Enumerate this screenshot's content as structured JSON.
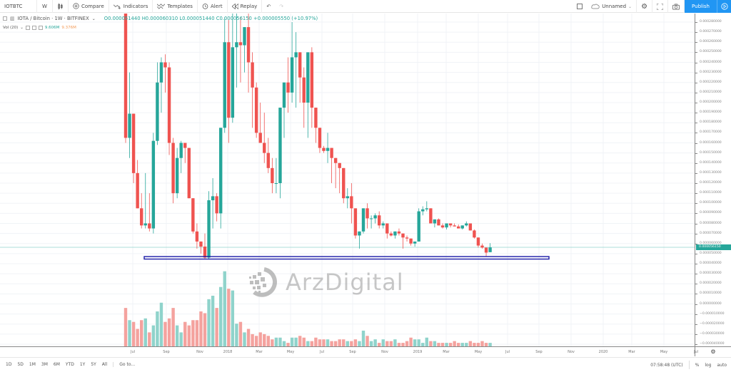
{
  "toolbar": {
    "symbol": "IOTBTC",
    "interval": "W",
    "compare_label": "Compare",
    "indicators_label": "Indicators",
    "templates_label": "Templates",
    "alert_label": "Alert",
    "replay_label": "Replay",
    "layout_name": "Unnamed",
    "publish_label": "Publish"
  },
  "legend": {
    "title": "IOTA / Bitcoin · 1W · BITFINEX",
    "ohlc": "O0.000051440  H0.000060310  L0.000051440  C0.000056150  +0.000005550 (+10.97%)",
    "vol_label": "Vol (20)",
    "vol_value_1": "9.606M",
    "vol_value_2": "9.376M"
  },
  "colors": {
    "up": "#26a69a",
    "down": "#ef5350",
    "vol_up": "#8fd3cb",
    "vol_down": "#f4a29e",
    "support_line": "#1a1aa6",
    "publish": "#2196f3"
  },
  "price_axis": {
    "labels": [
      "0.000280000",
      "0.000270000",
      "0.000260000",
      "0.000250000",
      "0.000240000",
      "0.000230000",
      "0.000220000",
      "0.000210000",
      "0.000200000",
      "0.000190000",
      "0.000180000",
      "0.000170000",
      "0.000160000",
      "0.000150000",
      "0.000140000",
      "0.000130000",
      "0.000120000",
      "0.000110000",
      "0.000100000",
      "0.000090000",
      "0.000080000",
      "0.000070000",
      "0.000060000",
      "0.000050000",
      "0.000040000",
      "0.000030000",
      "0.000020000",
      "0.000010000",
      "0.000000000",
      "−0.000010000",
      "−0.000020000",
      "−0.000030000",
      "−0.000040000"
    ],
    "last_price": "0.000056150"
  },
  "time_axis": {
    "labels": [
      "Jul",
      "Sep",
      "Nov",
      "2018",
      "Mar",
      "May",
      "Jul",
      "Sep",
      "Nov",
      "2019",
      "Mar",
      "May",
      "Jul",
      "Sep",
      "Nov",
      "2020",
      "Mar",
      "May",
      "Jul"
    ]
  },
  "bottombar": {
    "ranges": [
      "1D",
      "5D",
      "1M",
      "3M",
      "6M",
      "YTD",
      "1Y",
      "5Y",
      "All"
    ],
    "goto_label": "Go to...",
    "clock": "07:58:48 (UTC)",
    "percent_label": "%",
    "log_label": "log",
    "auto_label": "auto"
  },
  "watermark": "ArzDigital",
  "chart_data": {
    "type": "candlestick",
    "title": "IOTA / Bitcoin · 1W · BITFINEX",
    "symbol": "IOTBTC",
    "interval": "1W",
    "units": "BTC (values ×1e-6)",
    "ylim": [
      -40,
      285
    ],
    "support_line": {
      "price": 46,
      "x_start": "2017-10",
      "x_end": "2019-07"
    },
    "last_close": 56.15,
    "x_ticks": [
      "Jul",
      "Sep",
      "Nov",
      "2018",
      "Mar",
      "May",
      "Jul",
      "Sep",
      "Nov",
      "2019",
      "Mar",
      "May"
    ],
    "candles": [
      [
        300,
        300,
        160,
        165
      ],
      [
        165,
        230,
        145,
        189
      ],
      [
        189,
        189,
        120,
        130
      ],
      [
        130,
        143,
        100,
        95
      ],
      [
        95,
        110,
        75,
        78
      ],
      [
        78,
        130,
        75,
        80
      ],
      [
        80,
        110,
        72,
        75
      ],
      [
        75,
        170,
        70,
        162
      ],
      [
        162,
        240,
        158,
        220
      ],
      [
        220,
        245,
        190,
        240
      ],
      [
        240,
        248,
        210,
        235
      ],
      [
        235,
        240,
        148,
        160
      ],
      [
        160,
        165,
        100,
        110
      ],
      [
        110,
        155,
        105,
        145
      ],
      [
        145,
        162,
        130,
        160
      ],
      [
        160,
        155,
        140,
        155
      ],
      [
        155,
        150,
        110,
        105
      ],
      [
        105,
        95,
        70,
        72
      ],
      [
        72,
        80,
        55,
        62
      ],
      [
        62,
        60,
        50,
        57
      ],
      [
        57,
        70,
        45,
        46
      ],
      [
        46,
        112,
        45,
        103
      ],
      [
        103,
        125,
        75,
        107
      ],
      [
        107,
        110,
        82,
        90
      ],
      [
        90,
        120,
        75,
        175
      ],
      [
        175,
        285,
        170,
        260
      ],
      [
        260,
        282,
        160,
        185
      ],
      [
        185,
        290,
        180,
        255
      ],
      [
        255,
        300,
        215,
        260
      ],
      [
        260,
        285,
        220,
        257
      ],
      [
        257,
        270,
        230,
        275
      ],
      [
        275,
        300,
        210,
        240
      ],
      [
        240,
        250,
        175,
        215
      ],
      [
        215,
        220,
        165,
        170
      ],
      [
        170,
        200,
        160,
        160
      ],
      [
        160,
        190,
        140,
        150
      ],
      [
        150,
        165,
        130,
        135
      ],
      [
        135,
        145,
        110,
        120
      ],
      [
        120,
        145,
        110,
        120
      ],
      [
        120,
        170,
        105,
        195
      ],
      [
        195,
        215,
        165,
        220
      ],
      [
        220,
        245,
        190,
        210
      ],
      [
        210,
        280,
        200,
        245
      ],
      [
        245,
        270,
        195,
        250
      ],
      [
        250,
        245,
        200,
        225
      ],
      [
        225,
        235,
        175,
        200
      ],
      [
        200,
        212,
        165,
        250
      ],
      [
        250,
        255,
        175,
        195
      ],
      [
        195,
        195,
        160,
        175
      ],
      [
        175,
        175,
        150,
        155
      ],
      [
        155,
        157,
        150,
        152
      ],
      [
        152,
        170,
        140,
        155
      ],
      [
        155,
        155,
        120,
        145
      ],
      [
        145,
        145,
        115,
        140
      ],
      [
        140,
        137,
        110,
        135
      ],
      [
        135,
        125,
        100,
        105
      ],
      [
        105,
        115,
        95,
        107
      ],
      [
        107,
        120,
        80,
        95
      ],
      [
        95,
        95,
        65,
        68
      ],
      [
        68,
        70,
        55,
        72
      ],
      [
        72,
        95,
        70,
        95
      ],
      [
        95,
        100,
        75,
        85
      ],
      [
        85,
        88,
        75,
        85
      ],
      [
        85,
        90,
        80,
        88
      ],
      [
        88,
        92,
        75,
        78
      ],
      [
        78,
        82,
        75,
        80
      ],
      [
        80,
        78,
        65,
        70
      ],
      [
        70,
        72,
        67,
        68
      ],
      [
        68,
        72,
        65,
        72
      ],
      [
        72,
        75,
        68,
        70
      ],
      [
        70,
        68,
        55,
        66
      ],
      [
        66,
        68,
        62,
        65
      ],
      [
        65,
        65,
        58,
        60
      ],
      [
        60,
        62,
        57,
        62
      ],
      [
        62,
        95,
        62,
        92
      ],
      [
        92,
        97,
        88,
        94
      ],
      [
        94,
        102,
        92,
        95
      ],
      [
        95,
        95,
        80,
        80
      ],
      [
        80,
        84,
        76,
        84
      ],
      [
        84,
        85,
        78,
        78
      ],
      [
        78,
        80,
        75,
        76
      ],
      [
        76,
        80,
        74,
        80
      ],
      [
        80,
        78,
        76,
        78
      ],
      [
        78,
        80,
        77,
        77
      ],
      [
        77,
        79,
        75,
        75
      ],
      [
        75,
        75,
        74,
        78
      ],
      [
        78,
        82,
        77,
        80
      ],
      [
        80,
        80,
        74,
        73
      ],
      [
        73,
        74,
        65,
        66
      ],
      [
        66,
        66,
        56,
        58
      ],
      [
        58,
        60,
        55,
        56
      ],
      [
        56,
        50,
        47,
        51
      ],
      [
        51.44,
        60.31,
        51.44,
        56.15
      ]
    ],
    "volume_series": {
      "name": "Vol (20)",
      "peak_value_label": "9.606M"
    }
  }
}
